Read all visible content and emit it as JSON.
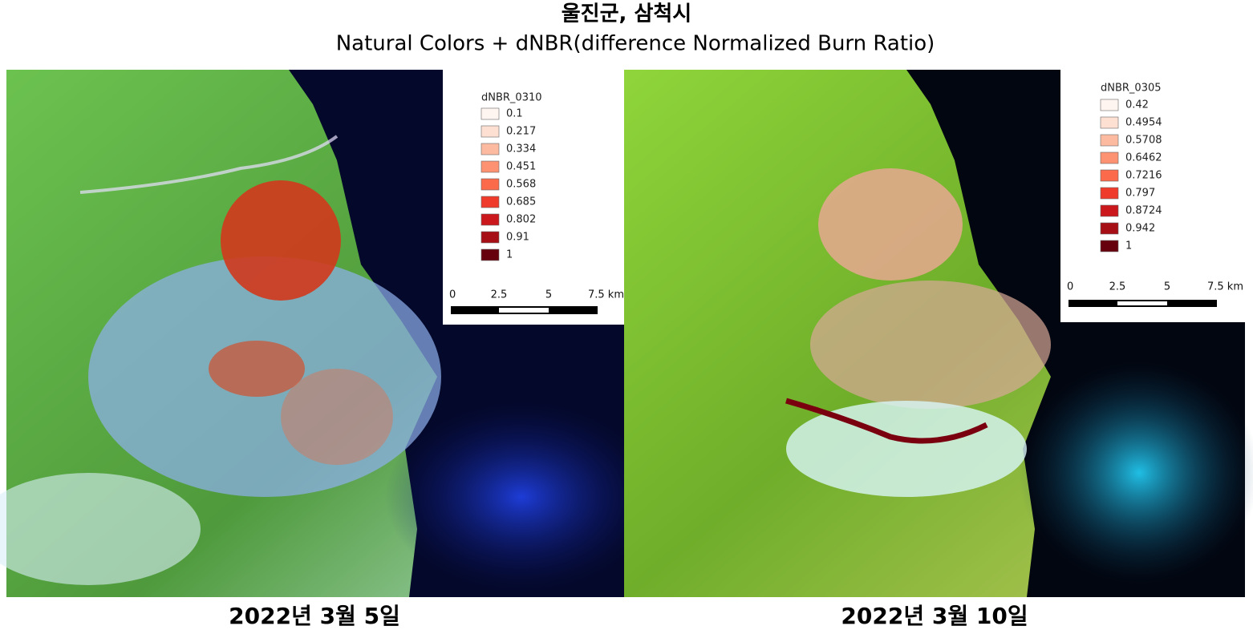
{
  "header": {
    "title": "울진군, 삼척시",
    "subtitle": "Natural Colors + dNBR(difference Normalized Burn Ratio)"
  },
  "panels": [
    {
      "caption": "2022년 3월 5일",
      "legend": {
        "title": "dNBR_0310",
        "items": [
          {
            "label": "0.1",
            "color": "#fff5f0"
          },
          {
            "label": "0.217",
            "color": "#fee0d2"
          },
          {
            "label": "0.334",
            "color": "#fcbba1"
          },
          {
            "label": "0.451",
            "color": "#fc9272"
          },
          {
            "label": "0.568",
            "color": "#fb6a4a"
          },
          {
            "label": "0.685",
            "color": "#ef3b2c"
          },
          {
            "label": "0.802",
            "color": "#cb181d"
          },
          {
            "label": "0.91",
            "color": "#a50f15"
          },
          {
            "label": "1",
            "color": "#67000d"
          }
        ]
      },
      "scale_bar": {
        "labels": [
          "0",
          "2.5",
          "5",
          "7.5 km"
        ]
      }
    },
    {
      "caption": "2022년 3월 10일",
      "legend": {
        "title": "dNBR_0305",
        "items": [
          {
            "label": "0.42",
            "color": "#fff5f0"
          },
          {
            "label": "0.4954",
            "color": "#fee0d2"
          },
          {
            "label": "0.5708",
            "color": "#fcbba1"
          },
          {
            "label": "0.6462",
            "color": "#fc9272"
          },
          {
            "label": "0.7216",
            "color": "#fb6a4a"
          },
          {
            "label": "0.797",
            "color": "#ef3b2c"
          },
          {
            "label": "0.8724",
            "color": "#cb181d"
          },
          {
            "label": "0.942",
            "color": "#a50f15"
          },
          {
            "label": "1",
            "color": "#67000d"
          }
        ]
      },
      "scale_bar": {
        "labels": [
          "0",
          "2.5",
          "5",
          "7.5 km"
        ]
      }
    }
  ]
}
